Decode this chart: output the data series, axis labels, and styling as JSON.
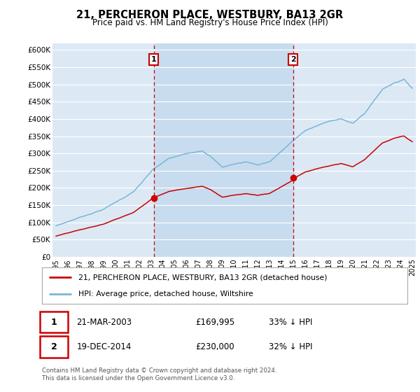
{
  "title": "21, PERCHERON PLACE, WESTBURY, BA13 2GR",
  "subtitle": "Price paid vs. HM Land Registry's House Price Index (HPI)",
  "ylabel_ticks": [
    "£0",
    "£50K",
    "£100K",
    "£150K",
    "£200K",
    "£250K",
    "£300K",
    "£350K",
    "£400K",
    "£450K",
    "£500K",
    "£550K",
    "£600K"
  ],
  "ytick_vals": [
    0,
    50000,
    100000,
    150000,
    200000,
    250000,
    300000,
    350000,
    400000,
    450000,
    500000,
    550000,
    600000
  ],
  "ylim": [
    0,
    620000
  ],
  "xlim_start": 1994.7,
  "xlim_end": 2025.3,
  "bg_color": "#dce9f5",
  "grid_color": "#ffffff",
  "sale1_x": 2003.22,
  "sale1_y": 169995,
  "sale2_x": 2014.97,
  "sale2_y": 230000,
  "vline1_x": 2003.22,
  "vline2_x": 2014.97,
  "legend_label_red": "21, PERCHERON PLACE, WESTBURY, BA13 2GR (detached house)",
  "legend_label_blue": "HPI: Average price, detached house, Wiltshire",
  "note1_date": "21-MAR-2003",
  "note1_price": "£169,995",
  "note1_hpi": "33% ↓ HPI",
  "note2_date": "19-DEC-2014",
  "note2_price": "£230,000",
  "note2_hpi": "32% ↓ HPI",
  "footer": "Contains HM Land Registry data © Crown copyright and database right 2024.\nThis data is licensed under the Open Government Licence v3.0.",
  "red_color": "#cc0000",
  "blue_color": "#7ab5d8",
  "shade_color": "#c8dcef",
  "xticks": [
    1995,
    1996,
    1997,
    1998,
    1999,
    2000,
    2001,
    2002,
    2003,
    2004,
    2005,
    2006,
    2007,
    2008,
    2009,
    2010,
    2011,
    2012,
    2013,
    2014,
    2015,
    2016,
    2017,
    2018,
    2019,
    2020,
    2021,
    2022,
    2023,
    2024,
    2025
  ]
}
